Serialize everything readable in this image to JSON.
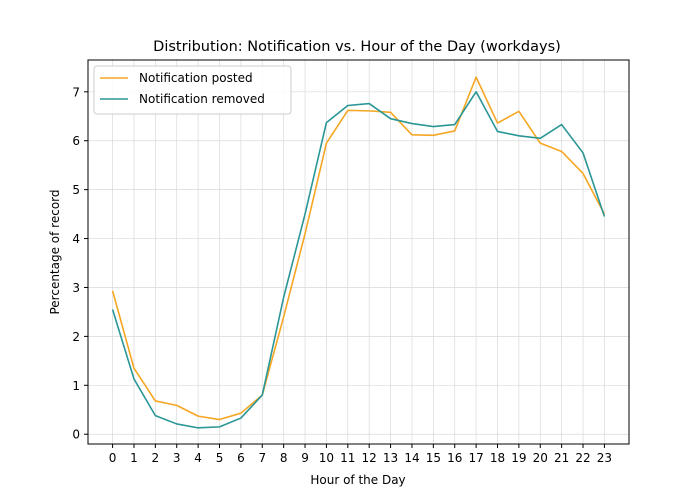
{
  "chart_data": {
    "type": "line",
    "title": "Distribution: Notification vs. Hour of the Day (workdays)",
    "xlabel": "Hour of the Day",
    "ylabel": "Percentage of record",
    "x": [
      0,
      1,
      2,
      3,
      4,
      5,
      6,
      7,
      8,
      9,
      10,
      11,
      12,
      13,
      14,
      15,
      16,
      17,
      18,
      19,
      20,
      21,
      22,
      23
    ],
    "x_tick_labels": [
      "0",
      "1",
      "2",
      "3",
      "4",
      "5",
      "6",
      "7",
      "8",
      "9",
      "10",
      "11",
      "12",
      "13",
      "14",
      "15",
      "16",
      "17",
      "18",
      "19",
      "20",
      "21",
      "22",
      "23"
    ],
    "y_ticks": [
      0,
      1,
      2,
      3,
      4,
      5,
      6,
      7
    ],
    "y_tick_labels": [
      "0",
      "1",
      "2",
      "3",
      "4",
      "5",
      "6",
      "7"
    ],
    "xlim": [
      -1.15,
      24.15
    ],
    "ylim": [
      -0.2,
      7.65
    ],
    "grid": true,
    "legend_position": "upper-left",
    "series": [
      {
        "name": "Notification posted",
        "color": "#f5a623",
        "values": [
          2.93,
          1.35,
          0.68,
          0.59,
          0.37,
          0.3,
          0.43,
          0.8,
          2.4,
          4.1,
          5.95,
          6.62,
          6.61,
          6.58,
          6.12,
          6.11,
          6.2,
          7.3,
          6.36,
          6.6,
          5.95,
          5.78,
          5.33,
          4.5
        ]
      },
      {
        "name": "Notification removed",
        "color": "#2a9696",
        "values": [
          2.55,
          1.13,
          0.38,
          0.21,
          0.13,
          0.15,
          0.33,
          0.8,
          2.8,
          4.5,
          6.37,
          6.72,
          6.76,
          6.45,
          6.35,
          6.29,
          6.33,
          7.0,
          6.19,
          6.1,
          6.05,
          6.33,
          5.75,
          4.45
        ]
      }
    ]
  }
}
